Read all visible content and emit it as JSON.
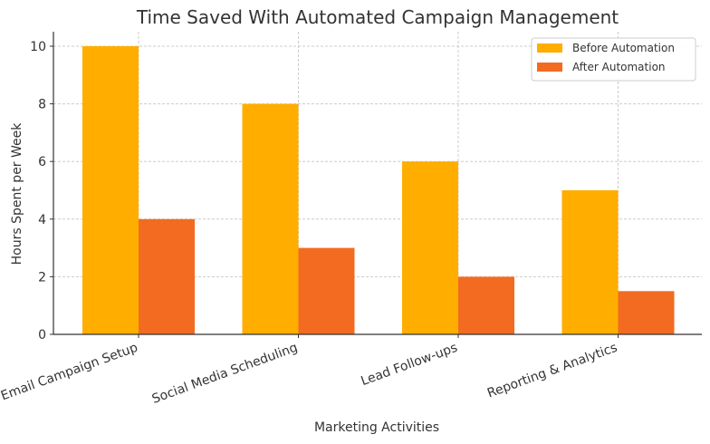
{
  "chart_data": {
    "type": "bar",
    "title": "Time Saved With Automated Campaign Management",
    "xlabel": "Marketing Activities",
    "ylabel": "Hours Spent per Week",
    "categories": [
      "Email Campaign Setup",
      "Social Media Scheduling",
      "Lead Follow-ups",
      "Reporting & Analytics"
    ],
    "series": [
      {
        "name": "Before Automation",
        "color": "#FFAE00",
        "values": [
          10,
          8,
          6,
          5
        ]
      },
      {
        "name": "After Automation",
        "color": "#F26B21",
        "values": [
          4,
          3,
          2,
          1.5
        ]
      }
    ],
    "ylim": [
      0,
      10.5
    ],
    "yticks": [
      0,
      2,
      4,
      6,
      8,
      10
    ],
    "grid": true,
    "legend_position": "upper right",
    "xtick_rotation": -20
  }
}
